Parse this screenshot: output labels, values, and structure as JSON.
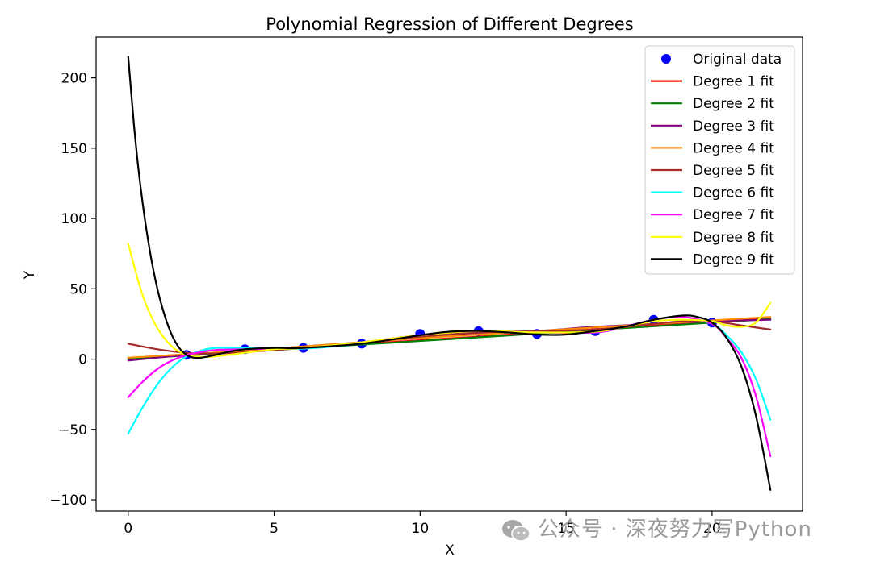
{
  "chart_data": {
    "type": "scatter+line",
    "title": "Polynomial Regression of Different Degrees",
    "xlabel": "X",
    "ylabel": "Y",
    "xlim": [
      -1.1,
      23.1
    ],
    "ylim": [
      -108,
      229
    ],
    "xticks": [
      0,
      5,
      10,
      15,
      20
    ],
    "yticks": [
      -100,
      -50,
      0,
      50,
      100,
      150,
      200
    ],
    "xtick_labels": [
      "0",
      "5",
      "10",
      "15",
      "20"
    ],
    "ytick_labels": [
      "−100",
      "−50",
      "0",
      "50",
      "100",
      "150",
      "200"
    ],
    "legend_position": "top-right",
    "scatter": {
      "name": "Original data",
      "color": "#0000ff",
      "x": [
        2,
        4,
        6,
        8,
        10,
        12,
        14,
        16,
        18,
        20
      ],
      "y": [
        3,
        7,
        8,
        11,
        18,
        20,
        18,
        20,
        28,
        26
      ]
    },
    "series": [
      {
        "name": "Degree 1 fit",
        "color": "#ff0000",
        "x": [
          0,
          22
        ],
        "y": [
          0.5,
          29
        ]
      },
      {
        "name": "Degree 2 fit",
        "color": "#008000",
        "x": [
          0,
          22
        ],
        "y": [
          0,
          28.5
        ]
      },
      {
        "name": "Degree 3 fit",
        "color": "#800080",
        "x": [
          0,
          2,
          4,
          6,
          8,
          10,
          12,
          14,
          16,
          18,
          20,
          22
        ],
        "y": [
          -1,
          3,
          6,
          9,
          12,
          15,
          18,
          20,
          23,
          25,
          27,
          28
        ]
      },
      {
        "name": "Degree 4 fit",
        "color": "#ff8c00",
        "x": [
          0,
          2,
          4,
          6,
          8,
          10,
          12,
          14,
          16,
          18,
          20,
          22
        ],
        "y": [
          1,
          3.5,
          6,
          9,
          12,
          15,
          17.5,
          20,
          22.5,
          25,
          27.5,
          30
        ]
      },
      {
        "name": "Degree 5 fit",
        "color": "#a52a2a",
        "x": [
          0,
          1,
          2,
          3,
          4,
          6,
          8,
          10,
          12,
          14,
          16,
          18,
          19,
          20,
          21,
          22
        ],
        "y": [
          11,
          7,
          4.5,
          4,
          5,
          8,
          12,
          16,
          19,
          20,
          21,
          25,
          27,
          27,
          24,
          21
        ]
      },
      {
        "name": "Degree 6 fit",
        "color": "#00ffff",
        "x": [
          0,
          0.5,
          1,
          1.5,
          2,
          2.5,
          3,
          4,
          5,
          6,
          8,
          10,
          12,
          14,
          16,
          17,
          18,
          19,
          20,
          20.5,
          21,
          21.5,
          22
        ],
        "y": [
          -53,
          -34,
          -18,
          -6,
          2,
          6,
          8,
          8,
          8,
          7.5,
          11,
          17,
          20,
          19,
          19,
          23,
          28,
          30,
          25,
          17,
          5,
          -14,
          -43
        ]
      },
      {
        "name": "Degree 7 fit",
        "color": "#ff00ff",
        "x": [
          0,
          0.5,
          1,
          1.5,
          2,
          2.5,
          3,
          4,
          5,
          6,
          8,
          10,
          12,
          14,
          16,
          17,
          18,
          19,
          20,
          20.5,
          21,
          21.5,
          22
        ],
        "y": [
          -27,
          -16,
          -7,
          -1,
          3,
          5,
          6.5,
          7,
          7.5,
          8,
          12,
          17,
          20,
          19,
          19,
          23,
          28,
          30,
          25,
          15,
          1,
          -26,
          -69
        ]
      },
      {
        "name": "Degree 8 fit",
        "color": "#ffff00",
        "x": [
          0,
          0.5,
          1,
          1.5,
          2,
          2.5,
          3,
          4,
          5,
          6,
          8,
          10,
          12,
          14,
          16,
          17,
          18,
          19,
          20,
          20.5,
          21,
          21.5,
          22
        ],
        "y": [
          82,
          45,
          22,
          9,
          3,
          1.5,
          2,
          4.5,
          7,
          8,
          12,
          17,
          20,
          19,
          19.5,
          23,
          27,
          28,
          27,
          24,
          23,
          26,
          40
        ]
      },
      {
        "name": "Degree 9 fit",
        "color": "#000000",
        "x": [
          0,
          0.25,
          0.5,
          0.75,
          1,
          1.25,
          1.5,
          1.75,
          2,
          2.25,
          2.5,
          3,
          3.5,
          4,
          5,
          6,
          8,
          10,
          11,
          12,
          13,
          14,
          15,
          16,
          17,
          18,
          19,
          19.5,
          20,
          20.5,
          21,
          21.5,
          22
        ],
        "y": [
          215,
          155,
          110,
          76,
          50,
          31,
          17,
          8,
          3,
          1,
          1,
          3,
          5.5,
          7,
          8,
          8,
          11,
          17,
          19.5,
          20,
          19,
          17.5,
          17.5,
          20,
          23,
          28,
          31,
          30,
          26,
          15,
          -5,
          -40,
          -93
        ]
      }
    ]
  },
  "watermark": {
    "text": "公众号 · 深夜努力写Python",
    "logo_icon": "wechat-icon"
  }
}
